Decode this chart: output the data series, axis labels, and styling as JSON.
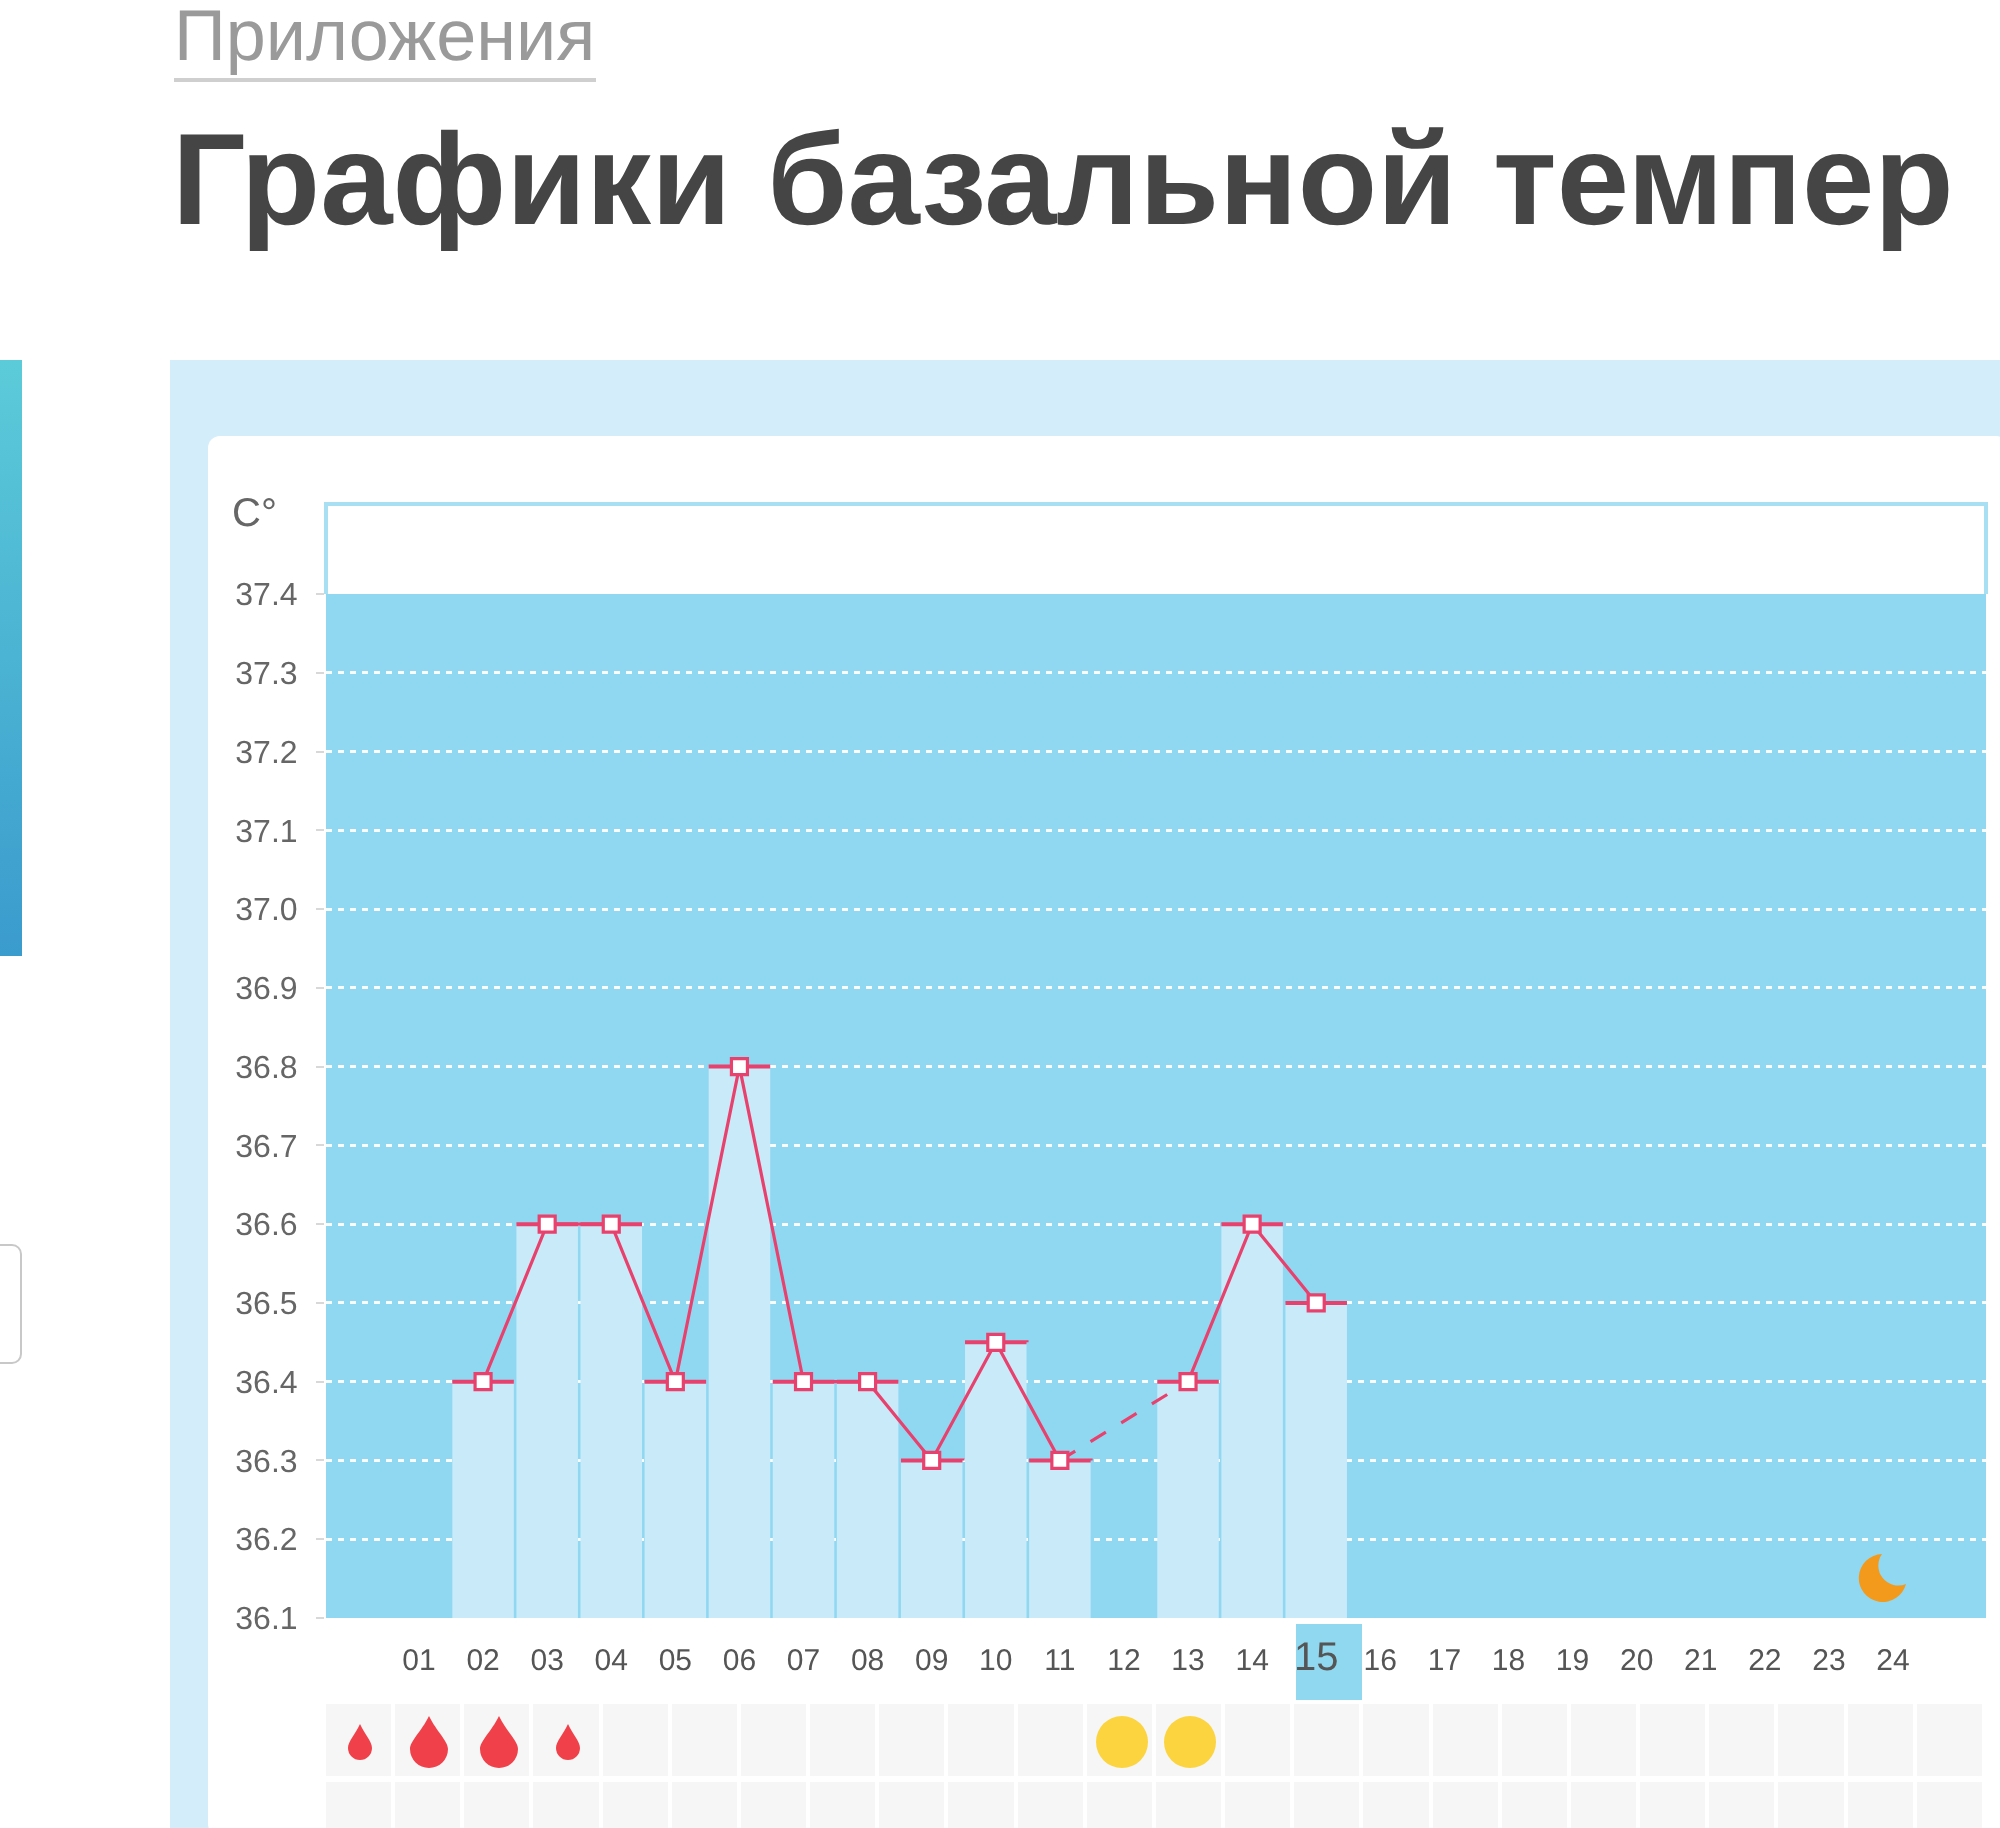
{
  "chart_data": {
    "type": "bar",
    "title": "Графики базальной темпер",
    "annotations": [
      "Приложения"
    ],
    "ylabel": "C°",
    "categories": [
      "01",
      "02",
      "03",
      "04",
      "05",
      "06",
      "07",
      "08",
      "09",
      "10",
      "11",
      "12",
      "13",
      "14",
      "15",
      "16",
      "17",
      "18",
      "19",
      "20",
      "21",
      "22",
      "23",
      "24"
    ],
    "series": [
      {
        "color": "#c8eaf9",
        "values": [
          null,
          36.4,
          36.6,
          36.6,
          36.4,
          36.8,
          36.4,
          36.4,
          36.3,
          36.45,
          36.3,
          null,
          36.4,
          36.6,
          36.5,
          null,
          null,
          null,
          null,
          null,
          null,
          null,
          null,
          null
        ]
      },
      {
        "type": "line",
        "color": "#e8416d",
        "marker": "none",
        "line_style": "dashed",
        "x": [
          "11",
          "13"
        ],
        "values": [
          36.3,
          36.4
        ]
      },
      {
        "type": "line",
        "color": "#e8416d",
        "marker": "square",
        "values": [
          null,
          36.4,
          36.6,
          36.6,
          36.4,
          36.8,
          36.4,
          36.4,
          36.3,
          36.45,
          36.3,
          null,
          36.4,
          36.6,
          36.5,
          null,
          null,
          null,
          null,
          null,
          null,
          null,
          null,
          null
        ]
      }
    ],
    "ylim": [
      36.1,
      37.4
    ],
    "yticks": [
      36.1,
      36.2,
      36.3,
      36.4,
      36.5,
      36.6,
      36.7,
      36.8,
      36.9,
      {
        "value": 37,
        "label": "37.0"
      },
      37.1,
      37.2,
      37.3,
      37.4
    ],
    "grid": "y"
  }
}
